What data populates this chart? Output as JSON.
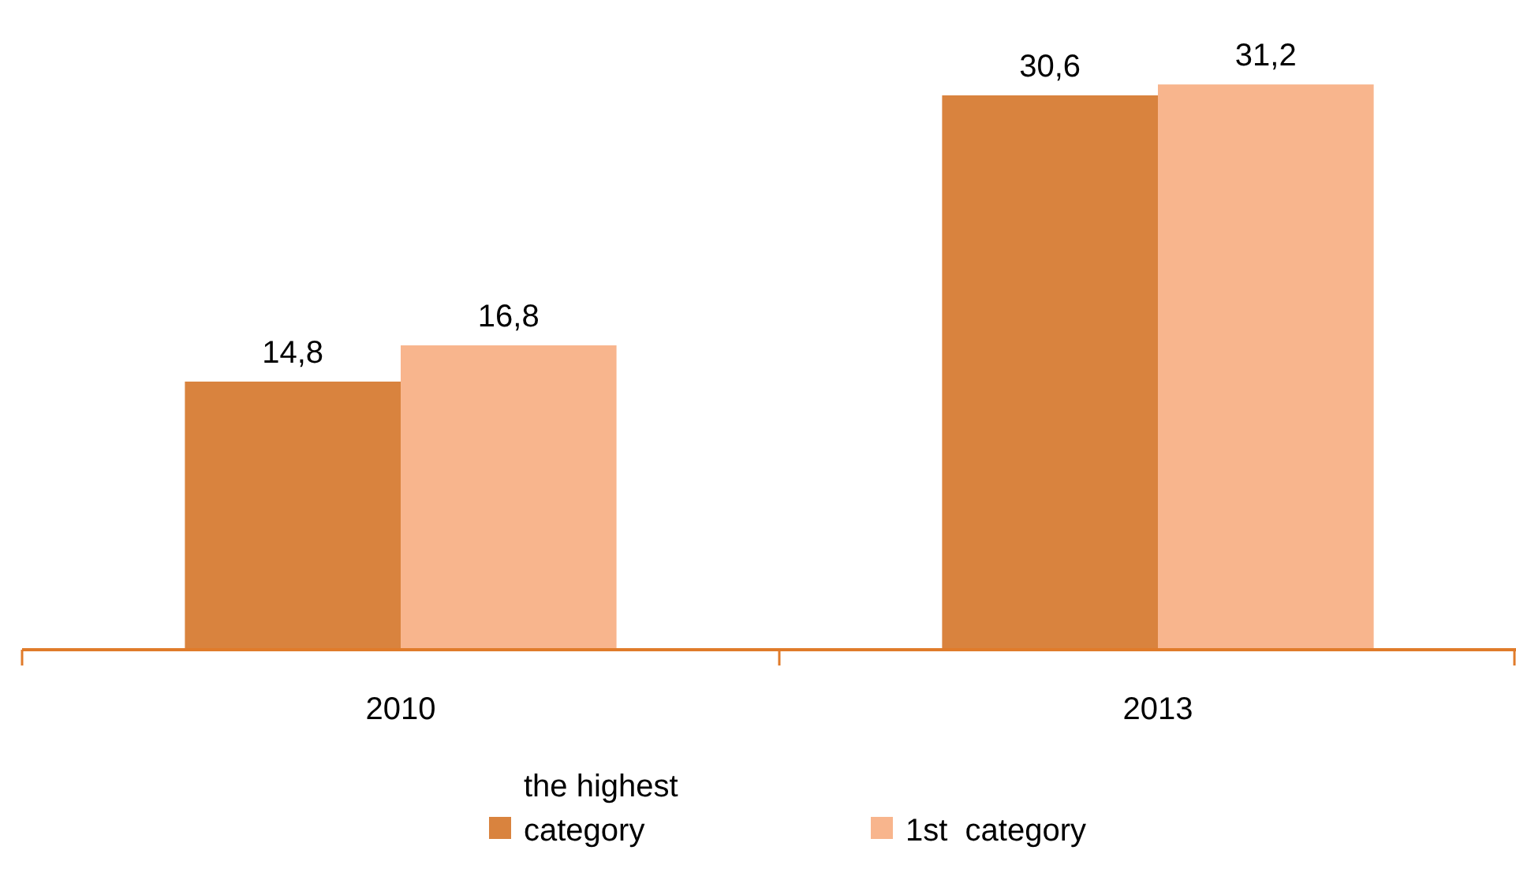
{
  "chart_data": {
    "type": "bar",
    "categories": [
      "2010",
      "2013"
    ],
    "series": [
      {
        "name": "the highest category",
        "color": "#d9833e",
        "values": [
          14.8,
          30.6
        ],
        "value_labels": [
          "14,8",
          "30,6"
        ]
      },
      {
        "name": "1st  category",
        "color": "#f8b58d",
        "values": [
          16.8,
          31.2
        ],
        "value_labels": [
          "16,8",
          "31,2"
        ]
      }
    ],
    "legend": "bottom"
  }
}
